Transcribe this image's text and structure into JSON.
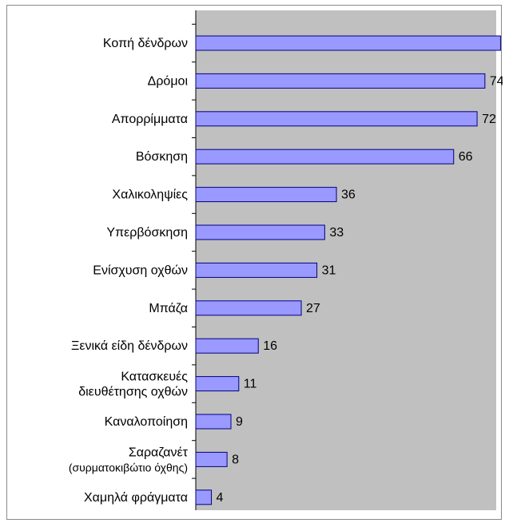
{
  "chart_data": {
    "type": "bar",
    "orientation": "horizontal",
    "categories": [
      [
        "Κοπή δένδρων"
      ],
      [
        "Δρόμοι"
      ],
      [
        "Απορρίμματα"
      ],
      [
        "Βόσκηση"
      ],
      [
        "Χαλικοληψίες"
      ],
      [
        "Υπερβόσκηση"
      ],
      [
        "Ενίσχυση οχθών"
      ],
      [
        "Μπάζα"
      ],
      [
        "Ξενικά είδη δένδρων"
      ],
      [
        "Κατασκευές",
        "διευθέτησης οχθών"
      ],
      [
        "Καναλοποίηση"
      ],
      [
        "Σαραζανέτ",
        "(συρματοκιβώτιο όχθης)"
      ],
      [
        "Χαμηλά φράγματα"
      ]
    ],
    "values": [
      78,
      74,
      72,
      66,
      36,
      33,
      31,
      27,
      16,
      11,
      9,
      8,
      4
    ],
    "title": "",
    "xlabel": "",
    "ylabel": "",
    "xlim": [
      0,
      85
    ],
    "grid": false,
    "legend": "none",
    "colors": {
      "bar_fill": "#9999ff",
      "bar_stroke": "#000080",
      "plot_background": "#c0c0c0"
    }
  }
}
